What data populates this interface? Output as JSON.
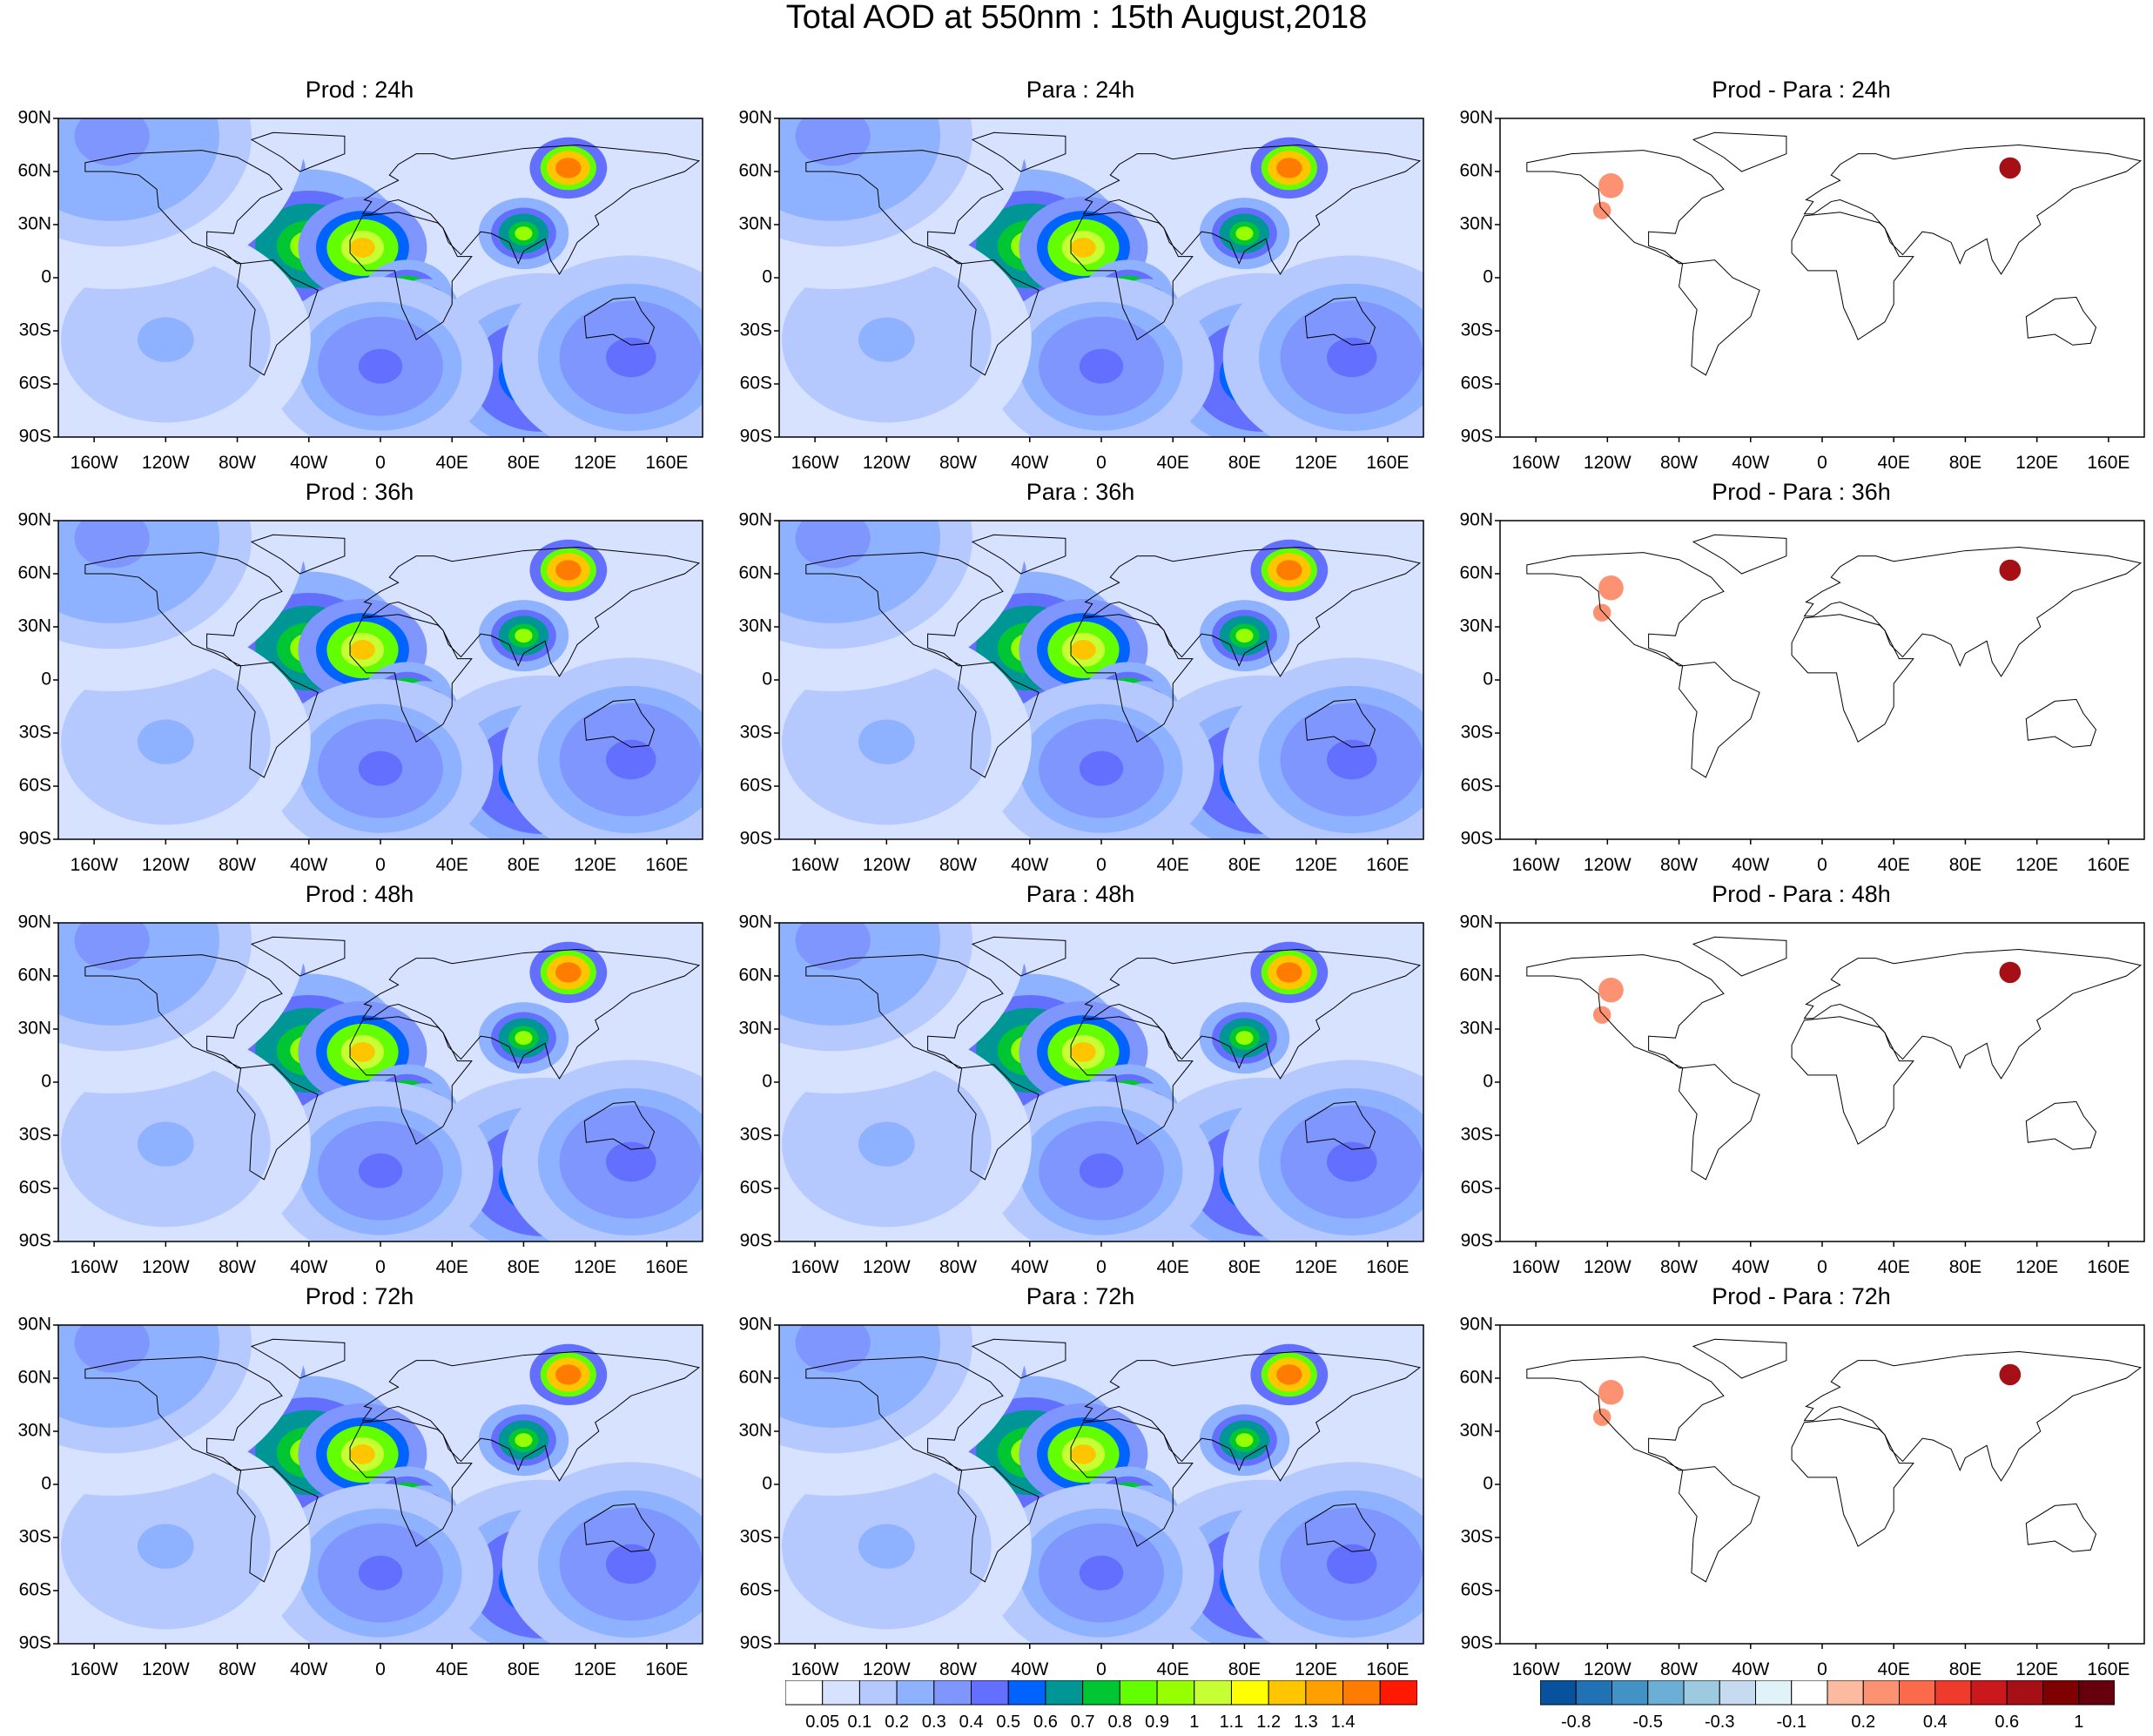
{
  "title": "Total AOD at 550nm : 15th August,2018",
  "panels": [
    {
      "title": "Prod : 24h",
      "kind": "aod"
    },
    {
      "title": "Para : 24h",
      "kind": "aod"
    },
    {
      "title": "Prod - Para : 24h",
      "kind": "diff"
    },
    {
      "title": "Prod : 36h",
      "kind": "aod"
    },
    {
      "title": "Para : 36h",
      "kind": "aod"
    },
    {
      "title": "Prod - Para : 36h",
      "kind": "diff"
    },
    {
      "title": "Prod : 48h",
      "kind": "aod"
    },
    {
      "title": "Para : 48h",
      "kind": "aod"
    },
    {
      "title": "Prod - Para : 48h",
      "kind": "diff"
    },
    {
      "title": "Prod : 72h",
      "kind": "aod"
    },
    {
      "title": "Para : 72h",
      "kind": "aod"
    },
    {
      "title": "Prod - Para : 72h",
      "kind": "diff"
    }
  ],
  "lat_ticks": [
    "90N",
    "60N",
    "30N",
    "0",
    "30S",
    "60S",
    "90S"
  ],
  "lon_ticks": [
    "160W",
    "120W",
    "80W",
    "40W",
    "0",
    "40E",
    "80E",
    "120E",
    "160E"
  ],
  "chart_data": {
    "type": "heatmap",
    "projection": "cylindrical equidistant",
    "lon_range": [
      -180,
      180
    ],
    "lat_range": [
      -90,
      90
    ],
    "lat_tick_values": [
      90,
      60,
      30,
      0,
      -30,
      -60,
      -90
    ],
    "lon_tick_values": [
      -160,
      -120,
      -80,
      -40,
      0,
      40,
      80,
      120,
      160
    ],
    "aod_colorbar": {
      "labels": [
        "0.05",
        "0.1",
        "0.2",
        "0.3",
        "0.4",
        "0.5",
        "0.6",
        "0.7",
        "0.8",
        "0.9",
        "1",
        "1.1",
        "1.2",
        "1.3",
        "1.4"
      ],
      "colors": [
        "#ffffff",
        "#d6e2ff",
        "#b5c9ff",
        "#8eb2ff",
        "#7f96ff",
        "#6370ff",
        "#0063ff",
        "#009696",
        "#00c633",
        "#63ff00",
        "#96ff00",
        "#c6ff33",
        "#ffff00",
        "#ffc600",
        "#ffa000",
        "#ff7c00",
        "#ff1900"
      ]
    },
    "diff_colorbar": {
      "labels": [
        "-0.8",
        "-0.5",
        "-0.3",
        "-0.1",
        "0.2",
        "0.4",
        "0.6",
        "1"
      ],
      "colors": [
        "#08519c",
        "#2171b5",
        "#4292c6",
        "#6baed6",
        "#9ecae1",
        "#c6dbef",
        "#e0f3f8",
        "#ffffff",
        "#fcbba1",
        "#fc9272",
        "#fb6a4a",
        "#ef3b2c",
        "#cb181d",
        "#a50f15",
        "#7f0000",
        "#67000d"
      ]
    }
  }
}
